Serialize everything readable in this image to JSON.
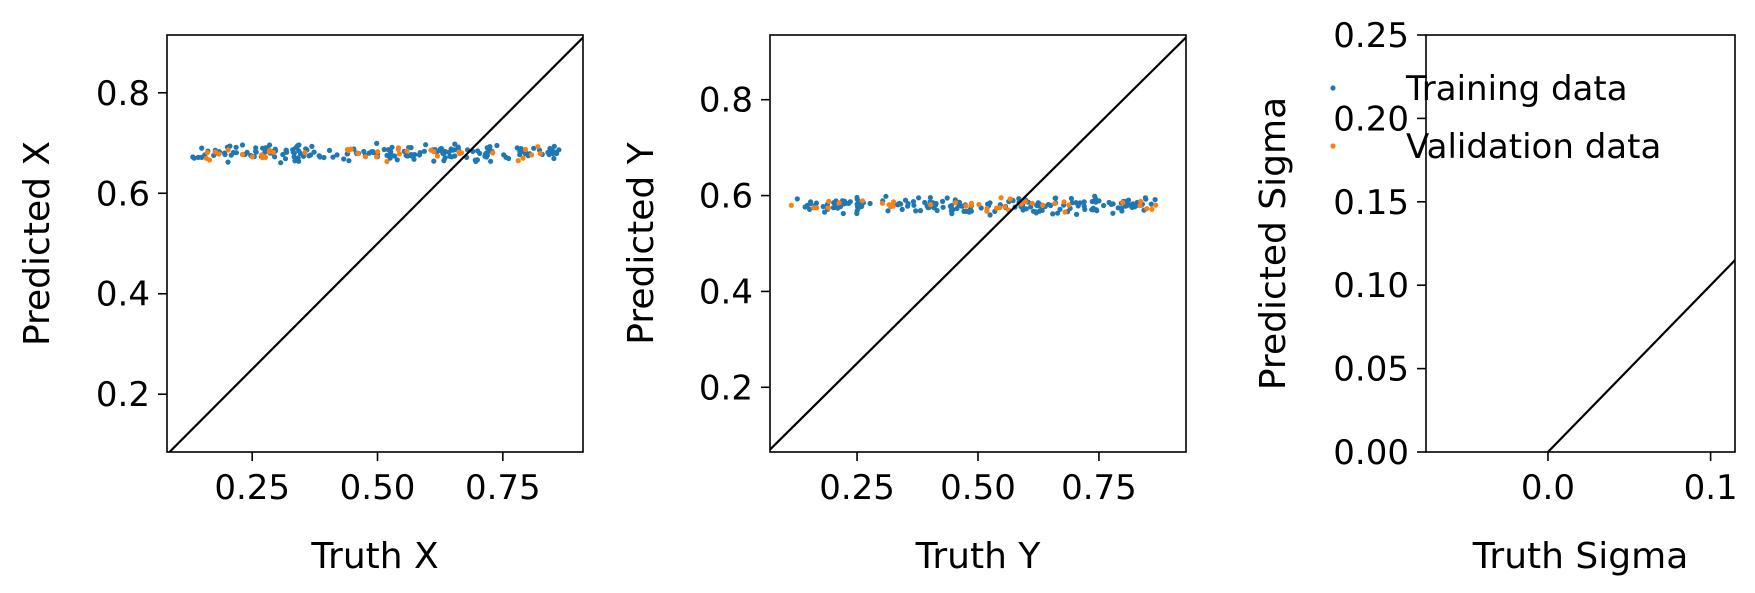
{
  "colors": {
    "training": "#1f77b4",
    "validation": "#ff7f0e",
    "identity_line": "#000000"
  },
  "legend": {
    "placement": "upper-left of third panel",
    "entries": [
      {
        "label": "Training data",
        "color": "#1f77b4"
      },
      {
        "label": "Validation data",
        "color": "#ff7f0e"
      }
    ]
  },
  "chart_data": [
    {
      "type": "scatter",
      "xlabel": "Truth X",
      "ylabel": "Predicted X",
      "xlim": [
        0.08,
        0.91
      ],
      "ylim": [
        0.085,
        0.915
      ],
      "xticks": [
        0.25,
        0.5,
        0.75
      ],
      "xtick_labels": [
        "0.25",
        "0.50",
        "0.75"
      ],
      "yticks": [
        0.2,
        0.4,
        0.6,
        0.8
      ],
      "ytick_labels": [
        "0.2",
        "0.4",
        "0.6",
        "0.8"
      ],
      "grid": false,
      "identity_line": true,
      "series": [
        {
          "name": "Training data",
          "x_range": [
            0.13,
            0.87
          ],
          "y_center": 0.68,
          "y_spread": 0.012,
          "count": 190
        },
        {
          "name": "Validation data",
          "x_range": [
            0.15,
            0.84
          ],
          "y_center": 0.68,
          "y_spread": 0.01,
          "count": 40
        }
      ]
    },
    {
      "type": "scatter",
      "xlabel": "Truth Y",
      "ylabel": "Predicted Y",
      "xlim": [
        0.07,
        0.93
      ],
      "ylim": [
        0.065,
        0.935
      ],
      "xticks": [
        0.25,
        0.5,
        0.75
      ],
      "xtick_labels": [
        "0.25",
        "0.50",
        "0.75"
      ],
      "yticks": [
        0.2,
        0.4,
        0.6,
        0.8
      ],
      "ytick_labels": [
        "0.2",
        "0.4",
        "0.6",
        "0.8"
      ],
      "grid": false,
      "identity_line": true,
      "series": [
        {
          "name": "Training data",
          "x_range": [
            0.12,
            0.87
          ],
          "y_center": 0.58,
          "y_spread": 0.012,
          "count": 190
        },
        {
          "name": "Validation data",
          "x_range": [
            0.1,
            0.89
          ],
          "y_center": 0.58,
          "y_spread": 0.01,
          "count": 40
        }
      ]
    },
    {
      "type": "scatter",
      "xlabel": "Truth Sigma",
      "ylabel": "Predicted Sigma",
      "xlim": [
        -0.075,
        0.115
      ],
      "ylim": [
        0.0,
        0.25
      ],
      "xticks": [
        0.0,
        0.1
      ],
      "xtick_labels": [
        "0.0",
        "0.1"
      ],
      "yticks": [
        0.0,
        0.05,
        0.1,
        0.15,
        0.2,
        0.25
      ],
      "ytick_labels": [
        "0.00",
        "0.05",
        "0.10",
        "0.15",
        "0.20",
        "0.25"
      ],
      "grid": false,
      "identity_line": true,
      "series": [
        {
          "name": "Training data",
          "x_range": [],
          "y_center": 0,
          "y_spread": 0,
          "count": 0
        },
        {
          "name": "Validation data",
          "x_range": [],
          "y_center": 0,
          "y_spread": 0,
          "count": 0
        }
      ]
    }
  ]
}
